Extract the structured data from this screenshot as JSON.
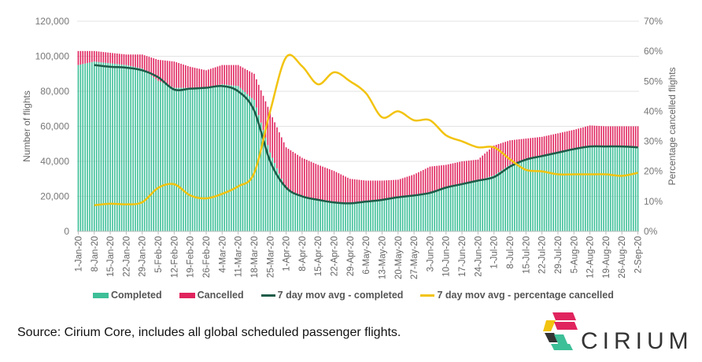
{
  "chart_data": {
    "type": "bar",
    "start_date": "1-Jan-20",
    "x_tick_labels": [
      "1-Jan-20",
      "8-Jan-20",
      "15-Jan-20",
      "22-Jan-20",
      "29-Jan-20",
      "5-Feb-20",
      "12-Feb-20",
      "19-Feb-20",
      "26-Feb-20",
      "4-Mar-20",
      "11-Mar-20",
      "18-Mar-20",
      "25-Mar-20",
      "1-Apr-20",
      "8-Apr-20",
      "15-Apr-20",
      "22-Apr-20",
      "29-Apr-20",
      "6-May-20",
      "13-May-20",
      "20-May-20",
      "27-May-20",
      "3-Jun-20",
      "10-Jun-20",
      "17-Jun-20",
      "24-Jun-20",
      "1-Jul-20",
      "8-Jul-20",
      "15-Jul-20",
      "22-Jul-20",
      "29-Jul-20",
      "5-Aug-20",
      "12-Aug-20",
      "19-Aug-20",
      "26-Aug-20",
      "2-Sep-20"
    ],
    "series": [
      {
        "name": "Completed",
        "type": "stacked-bar",
        "color": "#3dbf98",
        "values_thousands_weekly": [
          95,
          97,
          96,
          95,
          93,
          86,
          82,
          82,
          82,
          84,
          83,
          75,
          45,
          24,
          20,
          18,
          16.5,
          16,
          17,
          18,
          19.5,
          20.5,
          22,
          25,
          27,
          29,
          32,
          38,
          41,
          43,
          45,
          47,
          48.5,
          48.5,
          48.5,
          48
        ]
      },
      {
        "name": "Cancelled",
        "type": "stacked-bar",
        "color": "#e0245e",
        "values_thousands_weekly": [
          8,
          6,
          6,
          6,
          8,
          12,
          15,
          12,
          10,
          11,
          12,
          15,
          23,
          24,
          22,
          20,
          18,
          14,
          12,
          11,
          10,
          12,
          15,
          13,
          13,
          12,
          17,
          14,
          12,
          11,
          11,
          11,
          12,
          11.5,
          11.5,
          12
        ]
      },
      {
        "name": "7 day mov avg - completed",
        "type": "line",
        "axis": "left",
        "color": "#1d5c48",
        "values_thousands_weekly": [
          null,
          95,
          94,
          93.5,
          92,
          88,
          81,
          81.5,
          82,
          83,
          80,
          69,
          40,
          25,
          20,
          18,
          16.5,
          16,
          17,
          18,
          19.5,
          20.5,
          22,
          25,
          27,
          29,
          31,
          37,
          41,
          43,
          45,
          47,
          48.5,
          48.5,
          48.5,
          48
        ]
      },
      {
        "name": "7 day mov avg - percentage cancelled",
        "type": "line",
        "axis": "right",
        "color": "#f2c30f",
        "values_percent_weekly": [
          null,
          8.7,
          9.2,
          9,
          9.7,
          14.5,
          15.7,
          12,
          11,
          12.5,
          15,
          19.4,
          40,
          58,
          55,
          49,
          53,
          50,
          46,
          38,
          40,
          37,
          37,
          32,
          30,
          28,
          28,
          24,
          20.5,
          20,
          19,
          19,
          19,
          19,
          18.5,
          19.5
        ]
      }
    ],
    "left_axis": {
      "title": "Number of flights",
      "ylim": [
        0,
        120000
      ],
      "tick_labels": [
        "0",
        "20,000",
        "40,000",
        "60,000",
        "80,000",
        "100,000",
        "120,000"
      ]
    },
    "right_axis": {
      "title": "Percentage cancelled flights",
      "ylim": [
        0,
        70
      ],
      "tick_labels": [
        "0%",
        "10%",
        "20%",
        "30%",
        "40%",
        "50%",
        "60%",
        "70%"
      ]
    },
    "grid": true,
    "legend_position": "bottom"
  },
  "source": "Source: Cirium Core, includes all global scheduled passenger flights.",
  "logo_text": "CIRIUM"
}
